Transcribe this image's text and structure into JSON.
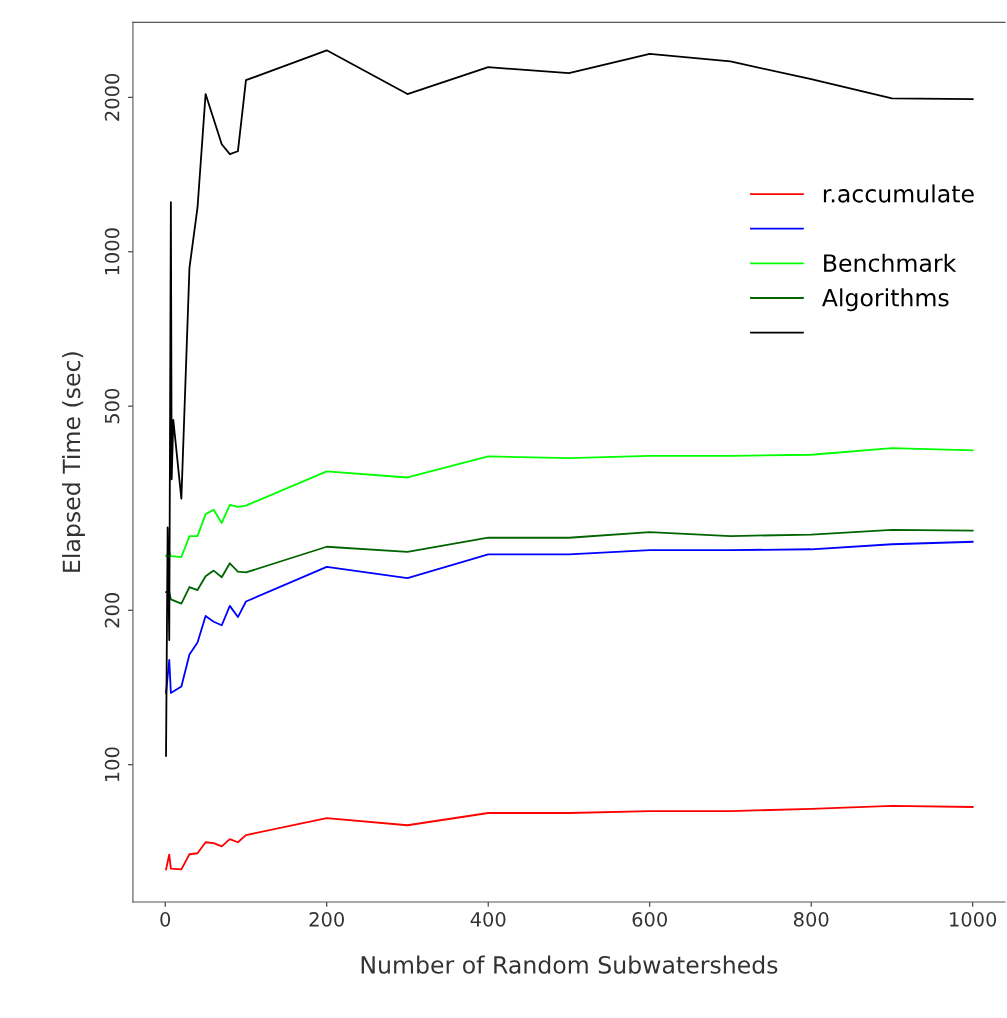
{
  "chart_data": {
    "type": "line",
    "xlabel": "Number of Random Subwatersheds",
    "ylabel": "Elapsed Time (sec)",
    "log": "y",
    "xlim": [
      -40,
      1040
    ],
    "ylim": [
      54,
      2800
    ],
    "xticks": [
      0,
      200,
      400,
      600,
      800,
      1000
    ],
    "yticks": [
      100,
      200,
      500,
      1000,
      2000
    ],
    "grid": false,
    "legend": "top right",
    "line_style": "solid",
    "marker": "none",
    "x": [
      1,
      5,
      7,
      20,
      30,
      40,
      50,
      60,
      70,
      80,
      90,
      100,
      200,
      300,
      400,
      500,
      600,
      700,
      800,
      900,
      1000
    ],
    "series": [
      {
        "name": "r.accumulate",
        "color": "#ff0000",
        "values": [
          62.5,
          66.8,
          62.7,
          62.5,
          66.9,
          67.2,
          70.6,
          70.3,
          69.3,
          71.6,
          70.6,
          72.9,
          78.7,
          76.2,
          80.5,
          80.5,
          81.2,
          81.2,
          82,
          83.1,
          82.7
        ]
      },
      {
        "color": "#0000ff",
        "values": [
          138,
          160,
          138,
          142,
          164,
          173,
          195,
          190,
          187,
          204,
          194,
          208,
          243,
          231,
          257,
          257,
          262,
          262,
          263,
          269,
          272
        ]
      },
      {
        "name": "Benchmark",
        "color": "#00ff00",
        "values": [
          255,
          260,
          255,
          254,
          279,
          279,
          308,
          314,
          296,
          321,
          318,
          320,
          373,
          363,
          399,
          396,
          400,
          400,
          402,
          414,
          410
        ]
      },
      {
        "name": "Algorithms",
        "color": "#006400",
        "values": [
          217,
          217,
          210,
          206,
          222,
          219,
          233,
          239,
          232,
          247,
          238,
          237,
          266,
          260,
          277,
          277,
          284,
          279,
          281,
          287,
          286
        ]
      },
      {
        "color": "#000000",
        "x": [
          1,
          3,
          5,
          7,
          8,
          10,
          20,
          30,
          40,
          50,
          70,
          80,
          90,
          100,
          200,
          300,
          400,
          500,
          600,
          700,
          800,
          900,
          1000
        ],
        "values": [
          104,
          290,
          175,
          1250,
          360,
          470,
          330,
          930,
          1220,
          2030,
          1620,
          1550,
          1570,
          2160,
          2470,
          2030,
          2290,
          2230,
          2430,
          2350,
          2170,
          1990,
          1985
        ]
      }
    ]
  }
}
